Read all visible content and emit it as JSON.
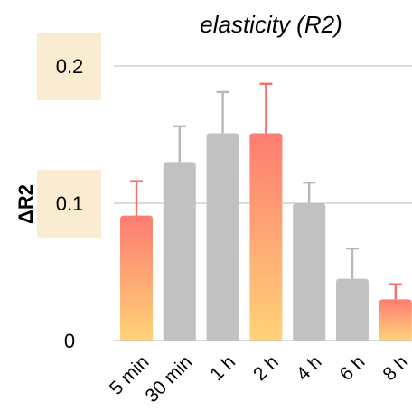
{
  "chart_data": {
    "type": "bar",
    "title": "elasticity (R2)",
    "xlabel": "",
    "ylabel": "ΔR2",
    "ylim": [
      0,
      0.2
    ],
    "yticks": [
      "0",
      "0.1",
      "0.2"
    ],
    "highlight_yticks": [
      "0.1",
      "0.2"
    ],
    "categories": [
      "5 min",
      "30 min",
      "1 h",
      "2 h",
      "4 h",
      "6 h",
      "8 h"
    ],
    "values": [
      0.091,
      0.13,
      0.151,
      0.151,
      0.1,
      0.045,
      0.03
    ],
    "errors": [
      0.025,
      0.026,
      0.03,
      0.036,
      0.015,
      0.022,
      0.011
    ],
    "highlighted": [
      true,
      false,
      false,
      true,
      false,
      false,
      true
    ],
    "grid": true,
    "colors": {
      "bar": "#c1c1c1",
      "error": "#b7b7b7",
      "highlight_top": "#fd7c72",
      "highlight_bottom": "#ffd377",
      "highlight_error": "#f76d6a",
      "grid": "#c8c8c8",
      "tick_highlight_bg": "#faecd1"
    }
  }
}
